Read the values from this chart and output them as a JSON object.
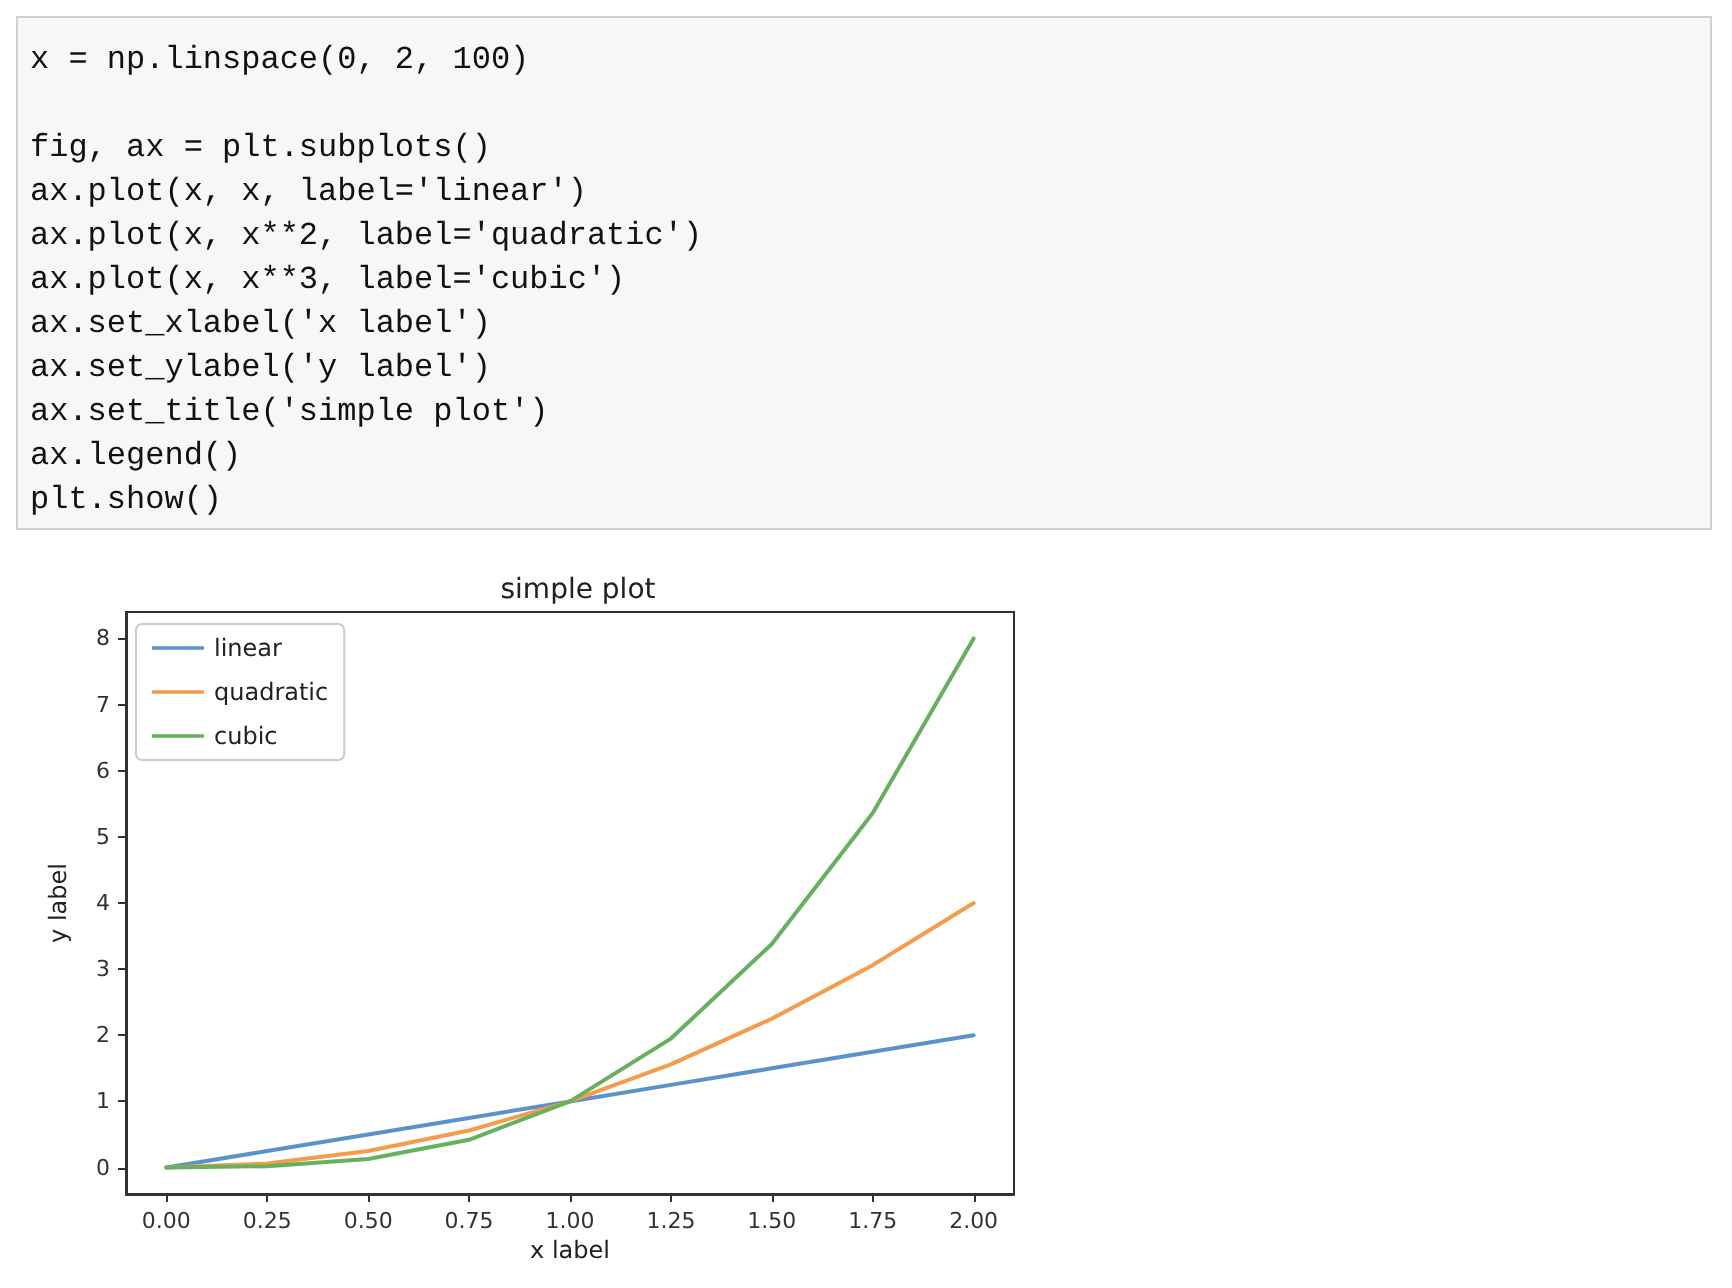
{
  "chart_data": {
    "type": "line",
    "title": "simple plot",
    "xlabel": "x label",
    "ylabel": "y label",
    "annotations": [
      "x = np.linspace(0, 2, 100)\n\nfig, ax = plt.subplots()\nax.plot(x, x, label='linear')\nax.plot(x, x**2, label='quadratic')\nax.plot(x, x**3, label='cubic')\nax.set_xlabel('x label')\nax.set_ylabel('y label')\nax.set_title('simple plot')\nax.legend()\nplt.show()"
    ],
    "x": [
      0,
      0.25,
      0.5,
      0.75,
      1,
      1.25,
      1.5,
      1.75,
      2
    ],
    "series": [
      {
        "name": "linear",
        "color": "#5a92c9",
        "values": [
          0,
          0.25,
          0.5,
          0.75,
          1,
          1.25,
          1.5,
          1.75,
          2
        ]
      },
      {
        "name": "quadratic",
        "color": "#f59b4c",
        "values": [
          0,
          0.06,
          0.25,
          0.56,
          1,
          1.56,
          2.25,
          3.06,
          4
        ]
      },
      {
        "name": "cubic",
        "color": "#65b15d",
        "values": [
          0,
          0.02,
          0.13,
          0.42,
          1,
          1.95,
          3.38,
          5.36,
          8
        ]
      }
    ],
    "xlim": [
      -0.1,
      2.1
    ],
    "ylim": [
      -0.4,
      8.4
    ],
    "xticks": [
      {
        "value": 0,
        "label": "0.00"
      },
      {
        "value": 0.25,
        "label": "0.25"
      },
      {
        "value": 0.5,
        "label": "0.50"
      },
      {
        "value": 0.75,
        "label": "0.75"
      },
      {
        "value": 1,
        "label": "1.00"
      },
      {
        "value": 1.25,
        "label": "1.25"
      },
      {
        "value": 1.5,
        "label": "1.50"
      },
      {
        "value": 1.75,
        "label": "1.75"
      },
      {
        "value": 2,
        "label": "2.00"
      }
    ],
    "yticks": [
      0,
      1,
      2,
      3,
      4,
      5,
      6,
      7,
      8
    ],
    "legend": "top left",
    "marker": "none",
    "line_style": "solid",
    "grid": false
  }
}
